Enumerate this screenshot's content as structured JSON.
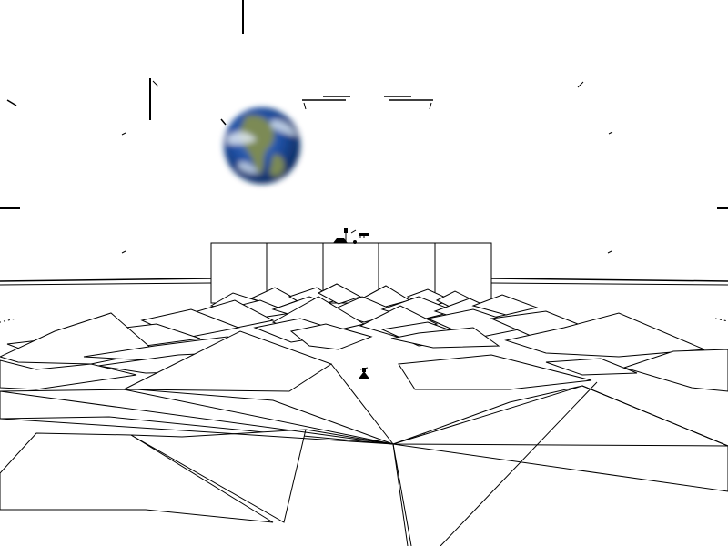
{
  "scene": {
    "background_color": "#ffffff",
    "line_color": "#000000",
    "planet": {
      "icon": "earth-globe-icon",
      "ocean_color": "#1e4fa3",
      "land_color": "#7c8a55",
      "cloud_color": "#dfe8f2"
    },
    "hud": {
      "crosshair_icon": "crosshair-icon",
      "side_marker_icon": "horizon-marker-icon"
    },
    "terrain": {
      "style": "wireframe-pyramids",
      "structure": "flat-panel-bunker"
    },
    "units": [
      {
        "icon": "ship-icon"
      },
      {
        "icon": "antenna-icon"
      }
    ]
  }
}
